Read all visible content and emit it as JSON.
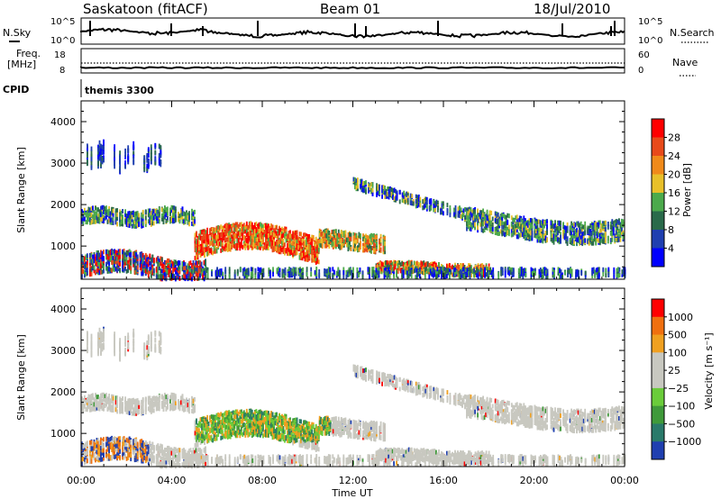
{
  "header": {
    "station": "Saskatoon (fitACF)",
    "beam": "Beam 01",
    "date": "18/Jul/2010"
  },
  "top_panel_labels": {
    "nsky": "N.Sky",
    "nsky_ticks": [
      "10^5",
      "10^0"
    ],
    "nsearch": "N.Search",
    "nsearch_ticks": [
      "10^5",
      "10^0"
    ],
    "freq_line1": "Freq.",
    "freq_line2": "[MHz]",
    "freq_ticks": [
      "18",
      "8"
    ],
    "nave": "Nave",
    "nave_ticks": [
      "60",
      "0"
    ],
    "cpid": "CPID",
    "cpid_value": "themis 3300"
  },
  "chart_data": [
    {
      "type": "heatmap",
      "name": "power-panel",
      "ylabel": "Slant Range [km]",
      "ylim": [
        200,
        4500
      ],
      "yticks": [
        "1000",
        "2000",
        "3000",
        "4000"
      ],
      "xticks": [
        "00:00",
        "04:00",
        "08:00",
        "12:00",
        "16:00",
        "20:00",
        "00:00"
      ],
      "xlim_hours": [
        0,
        24
      ],
      "colorbar_label": "Power [dB]",
      "colorbar_ticks": [
        "28",
        "24",
        "20",
        "16",
        "12",
        "8",
        "4"
      ],
      "colors": [
        "#0000ff",
        "#1f3fb0",
        "#2a6a4a",
        "#4caa4c",
        "#e8c02a",
        "#f08a1a",
        "#e84a1a",
        "#ff0000"
      ]
    },
    {
      "type": "heatmap",
      "name": "velocity-panel",
      "ylabel": "Slant Range [km]",
      "ylim": [
        200,
        4500
      ],
      "yticks": [
        "1000",
        "2000",
        "3000",
        "4000"
      ],
      "xticks": [
        "00:00",
        "04:00",
        "08:00",
        "12:00",
        "16:00",
        "20:00",
        "00:00"
      ],
      "xlim_hours": [
        0,
        24
      ],
      "xlabel": "Time UT",
      "colorbar_label": "Velocity [m s⁻¹]",
      "colorbar_ticks": [
        "1000",
        "500",
        "100",
        "25",
        "−25",
        "−100",
        "−500",
        "−1000"
      ],
      "colors": [
        "#1f3fb0",
        "#2a7a6a",
        "#3f9a3a",
        "#6acc3a",
        "#c8c8c0",
        "#c8c8c0",
        "#f0a020",
        "#f07010",
        "#ff0000"
      ]
    }
  ]
}
